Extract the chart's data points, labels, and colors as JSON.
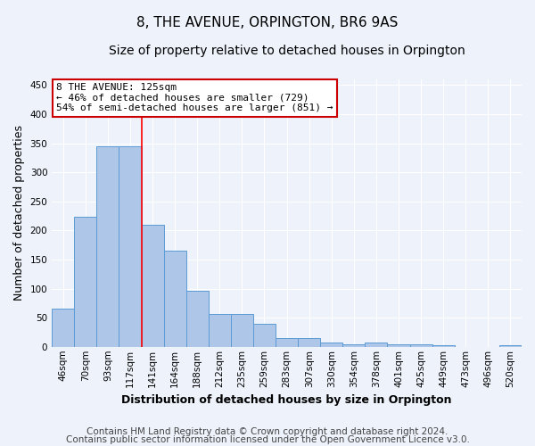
{
  "title": "8, THE AVENUE, ORPINGTON, BR6 9AS",
  "subtitle": "Size of property relative to detached houses in Orpington",
  "xlabel": "Distribution of detached houses by size in Orpington",
  "ylabel": "Number of detached properties",
  "bar_labels": [
    "46sqm",
    "70sqm",
    "93sqm",
    "117sqm",
    "141sqm",
    "164sqm",
    "188sqm",
    "212sqm",
    "235sqm",
    "259sqm",
    "283sqm",
    "307sqm",
    "330sqm",
    "354sqm",
    "378sqm",
    "401sqm",
    "425sqm",
    "449sqm",
    "473sqm",
    "496sqm",
    "520sqm"
  ],
  "bar_values": [
    65,
    224,
    345,
    345,
    210,
    165,
    97,
    57,
    57,
    40,
    15,
    15,
    7,
    5,
    7,
    5,
    4,
    3,
    0,
    0,
    2
  ],
  "bar_color": "#aec6e8",
  "bar_edge_color": "#5b9bd5",
  "property_line_label": "8 THE AVENUE: 125sqm",
  "annotation_line1": "← 46% of detached houses are smaller (729)",
  "annotation_line2": "54% of semi-detached houses are larger (851) →",
  "annotation_box_color": "#ffffff",
  "annotation_box_edge_color": "#cc0000",
  "ylim": [
    0,
    460
  ],
  "yticks": [
    0,
    50,
    100,
    150,
    200,
    250,
    300,
    350,
    400,
    450
  ],
  "footnote1": "Contains HM Land Registry data © Crown copyright and database right 2024.",
  "footnote2": "Contains public sector information licensed under the Open Government Licence v3.0.",
  "background_color": "#edf2fb",
  "grid_color": "#ffffff",
  "title_fontsize": 11,
  "subtitle_fontsize": 10,
  "xlabel_fontsize": 9,
  "ylabel_fontsize": 9,
  "footnote_fontsize": 7.5,
  "tick_fontsize": 7.5,
  "annot_fontsize": 8
}
